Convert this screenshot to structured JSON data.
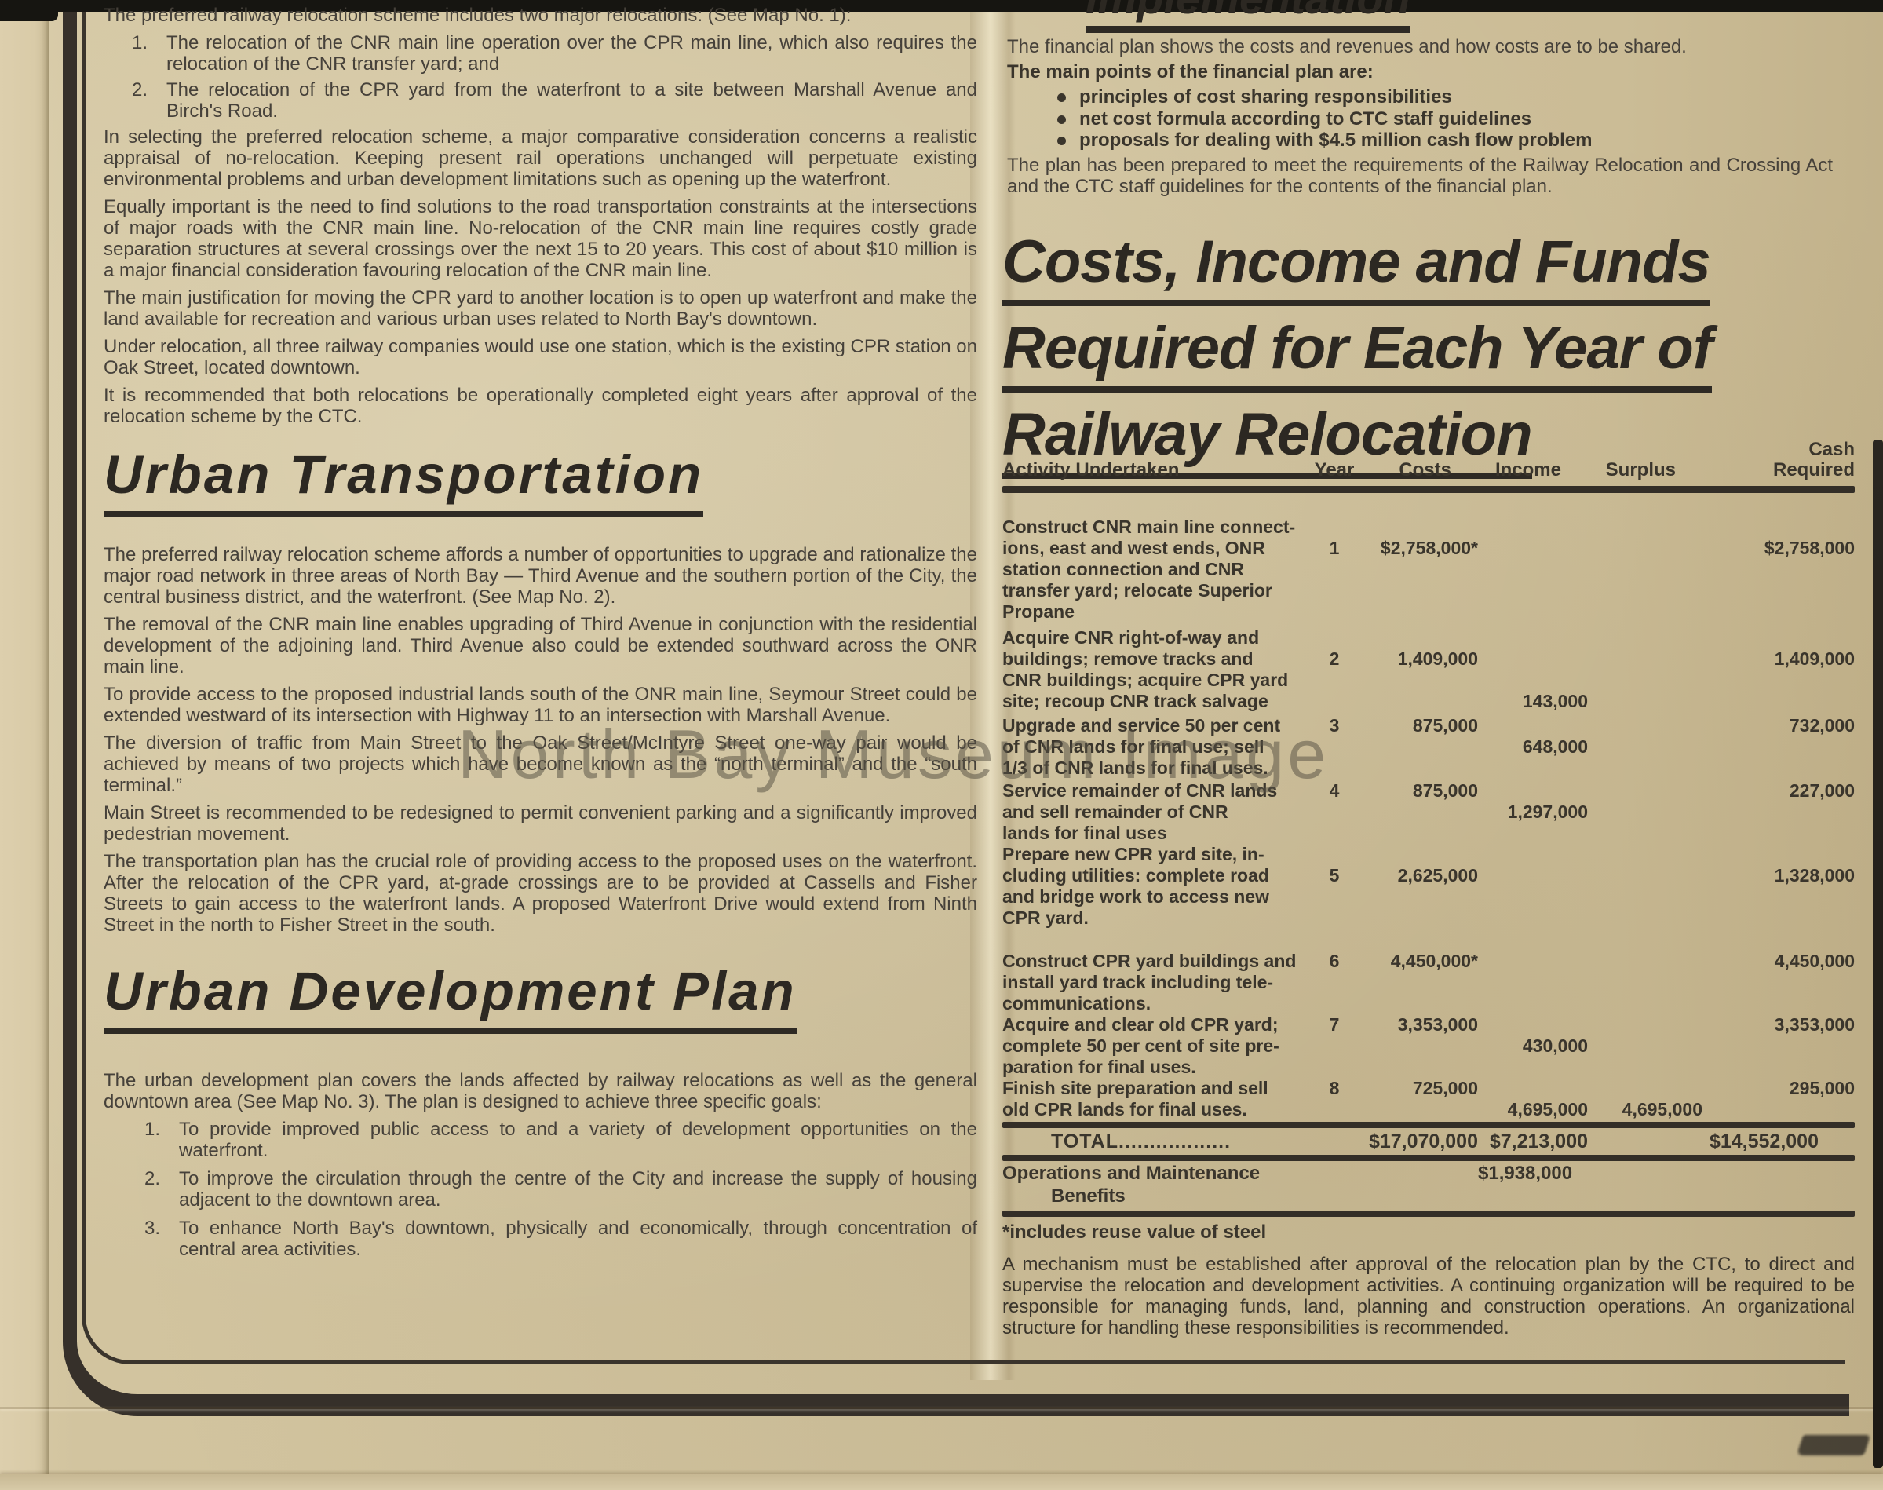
{
  "page": {
    "watermark": "North Bay Museum Image"
  },
  "left_column": {
    "lead_paragraph": "The preferred railway relocation scheme includes two major relocations: (See Map No. 1):",
    "relocation_list": [
      "The relocation of the CNR main line operation over the CPR main line, which also requires the relocation of the CNR transfer yard; and",
      "The relocation of the CPR yard from the waterfront to a site between Marshall Avenue and Birch's Road."
    ],
    "paragraphs": [
      "In selecting the preferred relocation scheme, a major comparative consideration concerns a realistic appraisal of no-relocation.  Keeping present rail operations unchanged will perpetuate existing environmental problems and urban development limitations such as opening up the waterfront.",
      "Equally important is the need to find solutions to the road transportation constraints at the intersections of major roads with the CNR main line.  No-relocation of the CNR main line requires costly grade separation structures at several crossings over the next 15 to 20 years.  This cost of about $10 million is a major financial consideration favouring relocation of the CNR main line.",
      "The main justification for moving the CPR yard to another location is to open up waterfront and make the land available for recreation and various urban uses related to North Bay's downtown.",
      "Under relocation, all three railway companies would use one station, which is the existing CPR station on Oak Street, located downtown.",
      "It is recommended that both relocations be operationally completed eight years after approval of the relocation scheme by the CTC."
    ],
    "urban_transportation": {
      "heading": "Urban Transportation",
      "paragraphs": [
        "The preferred railway relocation scheme affords a number of opportunities to upgrade and rationalize the major road network in three areas of North Bay — Third Avenue and the southern portion of the City, the central business district, and the waterfront. (See Map No. 2).",
        "The removal of the CNR main line enables upgrading of Third Avenue in conjunction with the residential development of the adjoining land.  Third Avenue also could be extended southward across the ONR main line.",
        "To provide access to the proposed industrial lands south of the ONR main line, Seymour Street could be extended westward of its intersection with Highway 11 to an intersection with Marshall Avenue.",
        "The diversion of traffic from Main Street to the Oak Street/McIntyre Street one-way pair would be achieved by means of two projects which have become known as the “north terminal” and the “south terminal.”",
        "Main Street is recommended to be redesigned to permit convenient parking and a significantly improved pedestrian movement.",
        "The transportation plan has the crucial role of providing access to the proposed uses on the waterfront.  After the relocation of the CPR yard, at-grade crossings are to be provided at Cassells and Fisher Streets to gain access to the waterfront lands.  A proposed Waterfront Drive would extend from Ninth Street in the north to Fisher Street in the south."
      ]
    },
    "urban_development": {
      "heading": "Urban Development Plan",
      "intro": "The urban development plan covers the lands affected by railway relocations as well as the general downtown area (See Map No. 3).  The plan is designed to achieve three specific goals:",
      "goals": [
        "To provide improved public access to and a variety of development opportunities on the waterfront.",
        "To improve the circulation through the centre of the City and increase the supply of housing adjacent to the downtown area.",
        "To enhance North Bay's downtown, physically and economically, through concentration of central area activities."
      ]
    }
  },
  "right_column": {
    "implementation": {
      "heading": "Implementation",
      "paragraph1": "The financial plan shows the costs and revenues and how costs are to be shared.",
      "main_points_label": "The main points of the financial plan are:",
      "main_points": [
        "principles of cost sharing responsibilities",
        "net cost formula according to CTC staff guidelines",
        "proposals for dealing with $4.5 million cash flow problem"
      ],
      "paragraph2": "The plan has been prepared to meet the requirements of the Railway Relocation and Crossing Act and the CTC staff guidelines for the contents of the financial plan."
    },
    "costs_title_lines": [
      "Costs, Income and Funds",
      "Required for Each Year of",
      "Railway Relocation"
    ],
    "table": {
      "headers": {
        "activity": "Activity Undertaken",
        "year": "Year",
        "costs": "Costs",
        "income": "Income",
        "surplus": "Surplus",
        "cash": "Cash\nRequired"
      },
      "rows": [
        {
          "activity": "Construct CNR main line connect-\nions, east and west ends, ONR\nstation connection and CNR\ntransfer yard; relocate Superior\nPropane",
          "year": "1",
          "costs": "$2,758,000*",
          "income": "",
          "surplus": "",
          "cash": "$2,758,000"
        },
        {
          "activity": "Acquire CNR right-of-way and\nbuildings; remove tracks and\nCNR buildings; acquire CPR yard\nsite; recoup CNR track salvage",
          "year": "2",
          "costs": "1,409,000",
          "income": "143,000",
          "surplus": "",
          "cash": "1,409,000"
        },
        {
          "activity": "Upgrade and service 50 per cent\nof CNR lands for final use; sell\n1/3 of CNR lands for final uses.",
          "year": "3",
          "costs": "875,000",
          "income": "648,000",
          "surplus": "",
          "cash": "732,000"
        },
        {
          "activity": "Service remainder of CNR lands\nand sell remainder of CNR\nlands for final uses",
          "year": "4",
          "costs": "875,000",
          "income": "1,297,000",
          "surplus": "",
          "cash": "227,000"
        },
        {
          "activity": "Prepare new CPR yard site, in-\ncluding utilities: complete road\nand bridge work to access new\nCPR yard.",
          "year": "5",
          "costs": "2,625,000",
          "income": "",
          "surplus": "",
          "cash": "1,328,000"
        },
        {
          "activity": "Construct CPR yard buildings and\ninstall yard track including tele-\ncommunications.",
          "year": "6",
          "costs": "4,450,000*",
          "income": "",
          "surplus": "",
          "cash": "4,450,000"
        },
        {
          "activity": "Acquire and clear old CPR yard;\ncomplete 50 per cent of site pre-\nparation for final uses.",
          "year": "7",
          "costs": "3,353,000",
          "income": "430,000",
          "surplus": "",
          "cash": "3,353,000"
        },
        {
          "activity": "Finish site preparation and sell\nold CPR lands for final uses.",
          "year": "8",
          "costs": "725,000",
          "income": "4,695,000",
          "surplus": "4,695,000",
          "cash": "295,000"
        }
      ],
      "total": {
        "label": "TOTAL..................",
        "costs": "$17,070,000",
        "income": "$7,213,000",
        "cash": "$14,552,000"
      },
      "operations": {
        "label": "Operations and Maintenance",
        "label2": "Benefits",
        "income": "$1,938,000"
      },
      "footnote": "*includes reuse value of steel"
    },
    "closing_paragraph": "A mechanism must be established after approval of the relocation plan by the CTC, to direct and supervise the relocation and development activities.  A continuing organization will be required to be responsible for managing funds, land, planning and construction operations.  An organizational structure for handling these responsibilities is recommended."
  }
}
